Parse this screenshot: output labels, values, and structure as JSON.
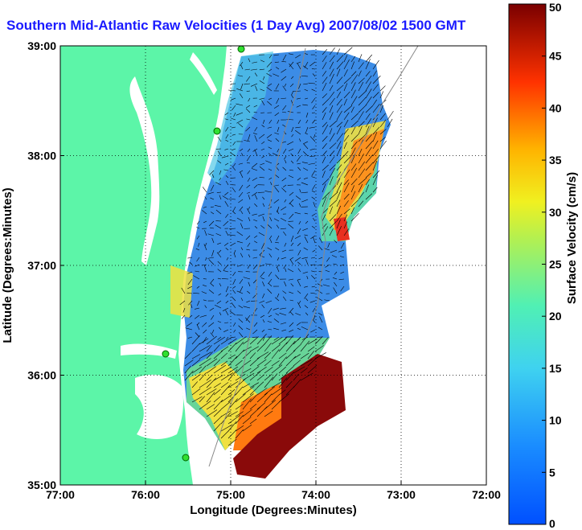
{
  "title": "Southern Mid-Atlantic Raw Velocities (1 Day Avg) 2007/08/02 1500 GMT",
  "map": {
    "xlabel": "Longitude (Degrees:Minutes)",
    "ylabel": "Latitude (Degrees:Minutes)",
    "x_ticks": [
      "77:00",
      "76:00",
      "75:00",
      "74:00",
      "73:00",
      "72:00"
    ],
    "y_ticks": [
      "39:00",
      "38:00",
      "37:00",
      "36:00",
      "35:00"
    ],
    "land_color": "#5cf5a8",
    "grid": "dotted"
  },
  "colorbar": {
    "label": "Surface Velocity (cm/s)",
    "ticks": [
      "50",
      "45",
      "40",
      "35",
      "30",
      "25",
      "20",
      "15",
      "10",
      "5",
      "0"
    ],
    "colormap": "jet",
    "range": [
      0,
      50
    ]
  }
}
